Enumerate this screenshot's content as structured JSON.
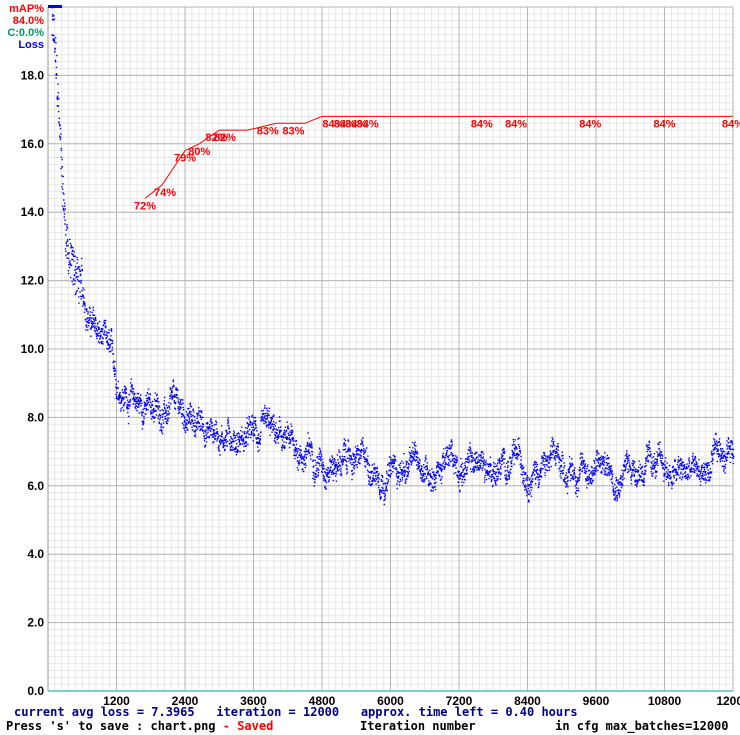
{
  "legend": {
    "map_label": "mAP%",
    "map_value": "84.0%",
    "class_label": "C:0.0%",
    "loss_label": "Loss"
  },
  "status": {
    "avg_loss": "current avg loss = 7.3965",
    "iteration": "iteration = 12000",
    "time_left": "approx. time left = 0.40 hours",
    "save_hint": "Press 's' to save : chart.png",
    "saved": "- Saved",
    "xlabel": "Iteration number",
    "max_batches": "in cfg max_batches=12000"
  },
  "colors": {
    "map": "#ff0000",
    "loss": "#0000ff",
    "class": "#009966",
    "grid": "#b4b4b4",
    "status": "#00008b"
  },
  "chart_data": {
    "type": "line",
    "grid": true,
    "xlim": [
      0,
      12000
    ],
    "ylim": [
      0,
      20
    ],
    "xticks": [
      "1200",
      "2400",
      "3600",
      "4800",
      "6000",
      "7200",
      "8400",
      "9600",
      "10800",
      "12000"
    ],
    "yticks": [
      "0.0",
      "2.0",
      "4.0",
      "6.0",
      "8.0",
      "10.0",
      "12.0",
      "14.0",
      "16.0",
      "18.0"
    ],
    "xlabel": "Iteration number",
    "ylabel": "Loss",
    "loss_series_anchors": {
      "x": [
        0,
        100,
        200,
        300,
        400,
        500,
        600,
        800,
        1000,
        1200,
        1600,
        2000,
        2400,
        2800,
        3200,
        3600,
        4000,
        4400,
        4800,
        5200,
        5600,
        6000,
        6400,
        6800,
        7200,
        7600,
        8000,
        8400,
        8800,
        9200,
        9600,
        10000,
        10400,
        10800,
        11200,
        11600,
        11800,
        12000
      ],
      "y": [
        20.0,
        19.0,
        16.0,
        13.5,
        12.5,
        12.2,
        11.5,
        10.6,
        10.0,
        9.0,
        8.4,
        8.2,
        8.0,
        7.7,
        7.6,
        7.4,
        7.2,
        7.0,
        6.9,
        6.8,
        6.6,
        6.5,
        6.6,
        6.6,
        6.7,
        6.6,
        6.6,
        6.7,
        6.6,
        6.5,
        6.6,
        6.6,
        6.7,
        6.4,
        6.3,
        6.5,
        6.8,
        7.4
      ]
    },
    "map_series": {
      "name": "mAP%",
      "x": [
        1700,
        2000,
        2400,
        2650,
        3000,
        3500,
        4000,
        4500,
        4800,
        5200,
        5500,
        5800,
        6200,
        7000,
        8000,
        9000,
        10000,
        11000,
        12000
      ],
      "y": [
        72,
        74,
        79,
        80,
        82,
        82,
        83,
        83,
        84,
        84,
        84,
        84,
        84,
        84,
        84,
        84,
        84,
        84,
        84
      ]
    },
    "map_labels": [
      {
        "x": 1700,
        "y": 72,
        "text": "72%"
      },
      {
        "x": 2050,
        "y": 74,
        "text": "74%"
      },
      {
        "x": 2400,
        "y": 79,
        "text": "79%"
      },
      {
        "x": 2650,
        "y": 80,
        "text": "80%"
      },
      {
        "x": 2950,
        "y": 82,
        "text": "82%"
      },
      {
        "x": 3100,
        "y": 82,
        "text": "82%"
      },
      {
        "x": 3850,
        "y": 83,
        "text": "83%"
      },
      {
        "x": 4300,
        "y": 83,
        "text": "83%"
      },
      {
        "x": 5000,
        "y": 84,
        "text": "84%"
      },
      {
        "x": 5200,
        "y": 84,
        "text": "84%"
      },
      {
        "x": 5400,
        "y": 84,
        "text": "84%"
      },
      {
        "x": 5600,
        "y": 84,
        "text": "84%"
      },
      {
        "x": 7600,
        "y": 84,
        "text": "84%"
      },
      {
        "x": 8200,
        "y": 84,
        "text": "84%"
      },
      {
        "x": 9500,
        "y": 84,
        "text": "84%"
      },
      {
        "x": 10800,
        "y": 84,
        "text": "84%"
      },
      {
        "x": 12000,
        "y": 84,
        "text": "84%"
      }
    ]
  }
}
